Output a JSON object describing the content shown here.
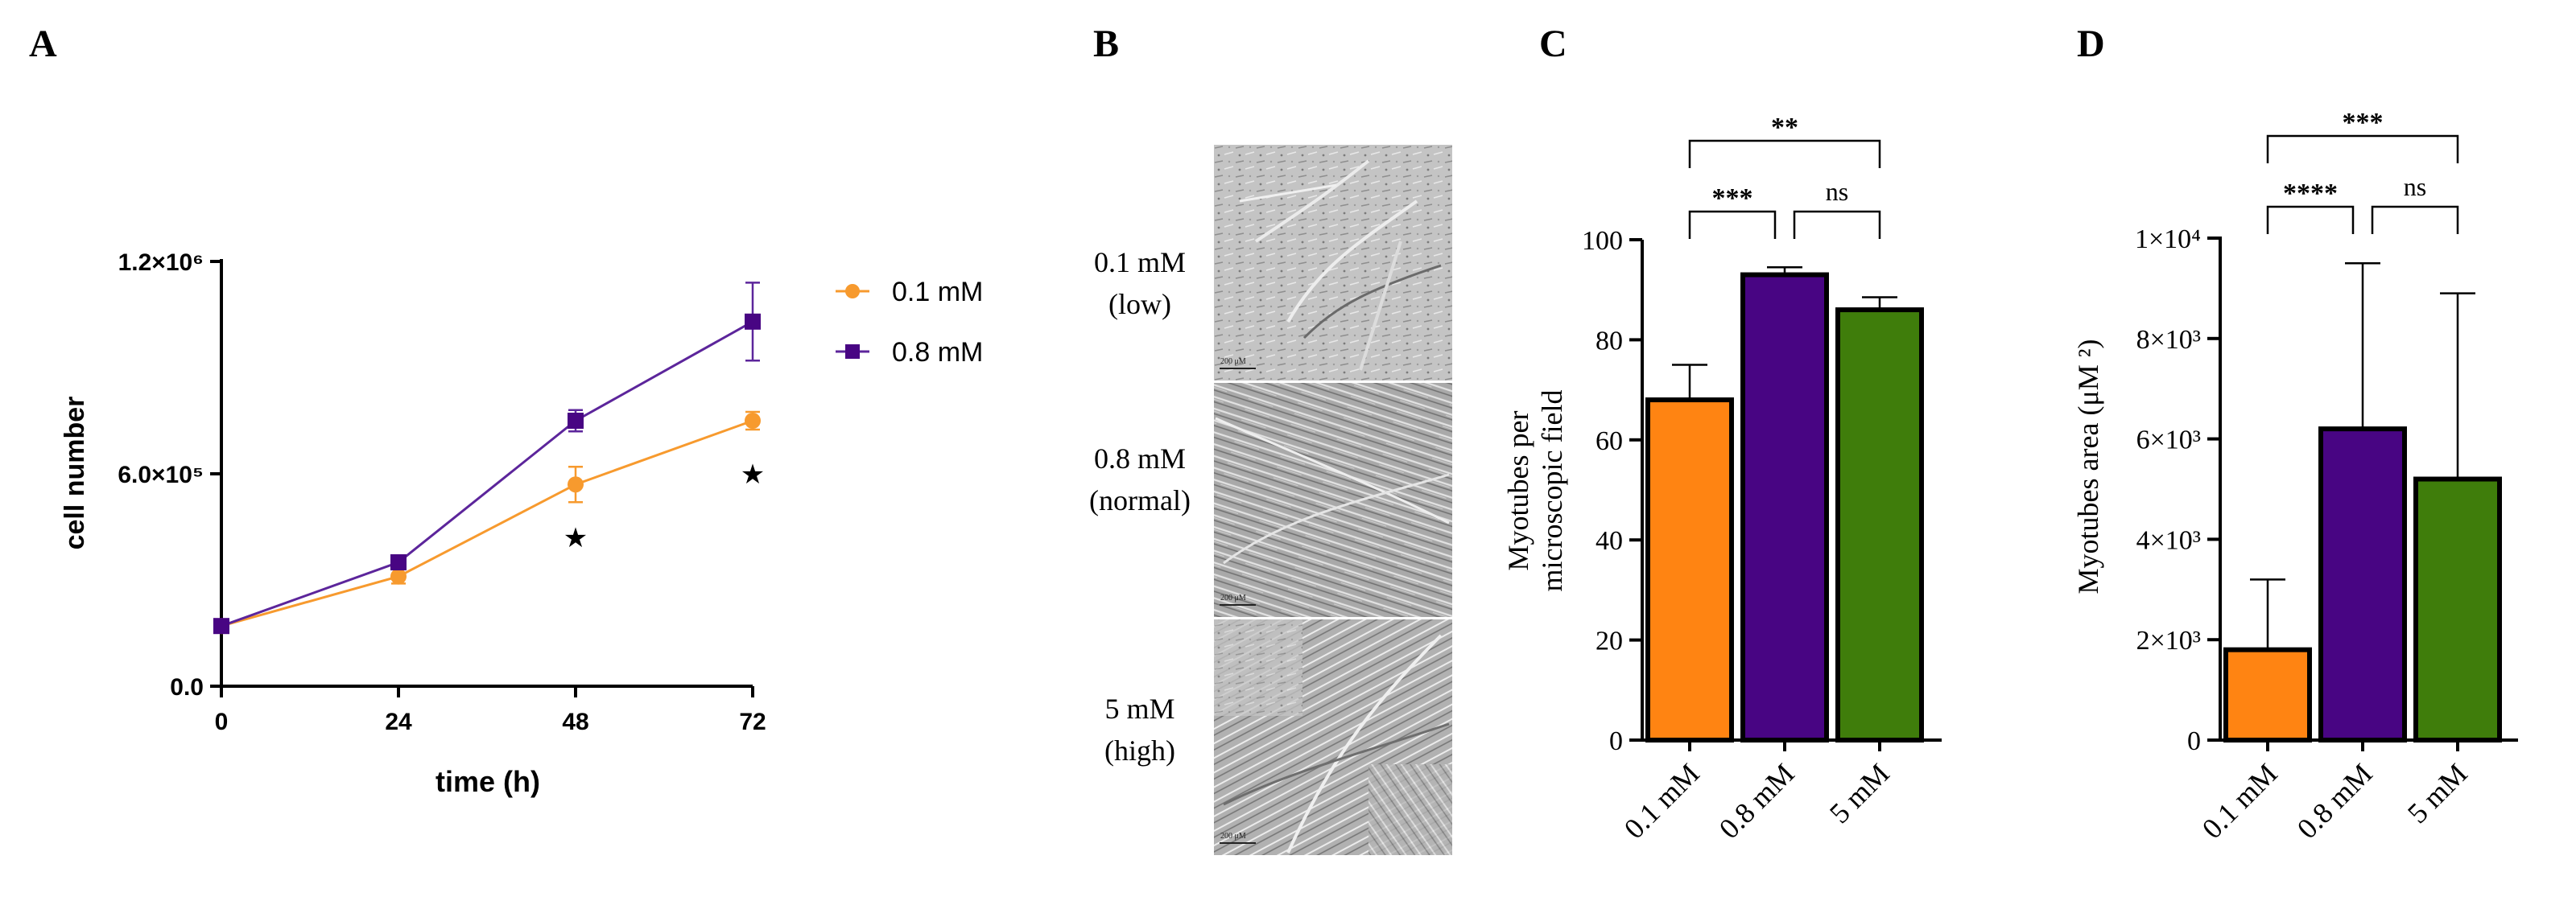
{
  "panels": {
    "a": "A",
    "b": "B",
    "c": "C",
    "d": "D"
  },
  "colors": {
    "orange": "#ff8412",
    "purple": "#480583",
    "green": "#3f7d0b",
    "line_orange": "#f79a2e",
    "line_purple": "#5c259b"
  },
  "chart_data": [
    {
      "id": "A",
      "type": "line",
      "xlabel": "time (h)",
      "ylabel": "cell number",
      "x": [
        0,
        24,
        48,
        72
      ],
      "xticks": [
        "0",
        "24",
        "48",
        "72"
      ],
      "yticks": [
        "0.0",
        "6.0×10⁵",
        "1.2×10⁶"
      ],
      "ytick_values": [
        0,
        600000,
        1200000
      ],
      "ylim": [
        0,
        1200000
      ],
      "xlim": [
        0,
        72
      ],
      "series": [
        {
          "name": "0.1 mM",
          "values": [
            170000,
            310000,
            570000,
            750000
          ],
          "errors": [
            15000,
            20000,
            50000,
            25000
          ],
          "marker": "circle",
          "color": "#f79a2e"
        },
        {
          "name": "0.8 mM",
          "values": [
            170000,
            350000,
            750000,
            1030000
          ],
          "errors": [
            15000,
            20000,
            30000,
            110000
          ],
          "marker": "square",
          "color": "#5c259b"
        }
      ],
      "annotations": [
        {
          "x": 48,
          "y": 420000,
          "text": "★"
        },
        {
          "x": 72,
          "y": 600000,
          "text": "★"
        }
      ],
      "legend_position": "top-right"
    },
    {
      "id": "C",
      "type": "bar",
      "ylabel_line1": "Myotubes per",
      "ylabel_line2": "microscopic field",
      "categories": [
        "0.1 mM",
        "0.8 mM",
        "5 mM"
      ],
      "values": [
        68,
        93,
        86
      ],
      "errors": [
        7,
        1.5,
        2.5
      ],
      "colors": [
        "#ff8412",
        "#480583",
        "#3f7d0b"
      ],
      "ylim": [
        0,
        100
      ],
      "yticks": [
        "0",
        "20",
        "40",
        "60",
        "80",
        "100"
      ],
      "ytick_values": [
        0,
        20,
        40,
        60,
        80,
        100
      ],
      "significance": [
        {
          "from": 0,
          "to": 1,
          "label": "***",
          "level": 1
        },
        {
          "from": 1,
          "to": 2,
          "label": "ns",
          "level": 1
        },
        {
          "from": 0,
          "to": 2,
          "label": "**",
          "level": 2
        }
      ]
    },
    {
      "id": "D",
      "type": "bar",
      "ylabel": "Myotubes area (μM ²)",
      "categories": [
        "0.1 mM",
        "0.8 mM",
        "5 mM"
      ],
      "values": [
        1800,
        6200,
        5200
      ],
      "errors": [
        1400,
        3300,
        3700
      ],
      "colors": [
        "#ff8412",
        "#480583",
        "#3f7d0b"
      ],
      "ylim": [
        0,
        10000
      ],
      "yticks": [
        "0",
        "2×10³",
        "4×10³",
        "6×10³",
        "8×10³",
        "1×10⁴"
      ],
      "ytick_values": [
        0,
        2000,
        4000,
        6000,
        8000,
        10000
      ],
      "significance": [
        {
          "from": 0,
          "to": 1,
          "label": "****",
          "level": 1
        },
        {
          "from": 1,
          "to": 2,
          "label": "ns",
          "level": 1
        },
        {
          "from": 0,
          "to": 2,
          "label": "***",
          "level": 2
        }
      ]
    }
  ],
  "micrographs": {
    "rows": [
      {
        "line1": "0.1 mM",
        "line2": "(low)",
        "scale": "200 μM"
      },
      {
        "line1": "0.8 mM",
        "line2": "(normal)",
        "scale": "200 μM"
      },
      {
        "line1": "5 mM",
        "line2": "(high)",
        "scale": "200 μM"
      }
    ]
  }
}
